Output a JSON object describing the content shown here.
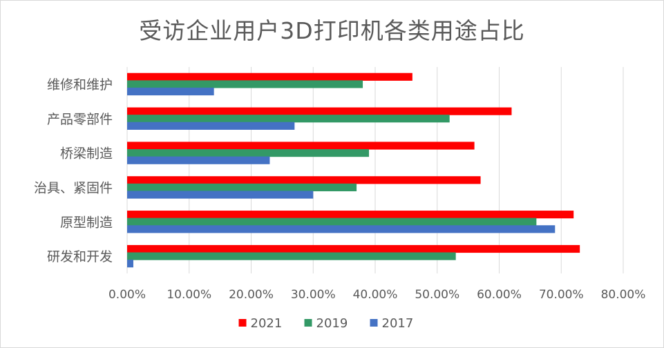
{
  "chart_data": {
    "type": "bar",
    "orientation": "horizontal",
    "title": "受访企业用户3D打印机各类用途占比",
    "categories": [
      "维修和维护",
      "产品零部件",
      "桥梁制造",
      "治具、紧固件",
      "原型制造",
      "研发和开发"
    ],
    "series": [
      {
        "name": "2021",
        "color": "#ff0000",
        "values": [
          46,
          62,
          56,
          57,
          72,
          73
        ]
      },
      {
        "name": "2019",
        "color": "#339966",
        "values": [
          38,
          52,
          39,
          37,
          66,
          53
        ]
      },
      {
        "name": "2017",
        "color": "#4472c4",
        "values": [
          14,
          27,
          23,
          30,
          69,
          1
        ]
      }
    ],
    "xlim": [
      0,
      80
    ],
    "x_ticks": [
      "0.00%",
      "10.00%",
      "20.00%",
      "30.00%",
      "40.00%",
      "50.00%",
      "60.00%",
      "70.00%",
      "80.00%"
    ],
    "grid": true,
    "legend_position": "bottom"
  }
}
